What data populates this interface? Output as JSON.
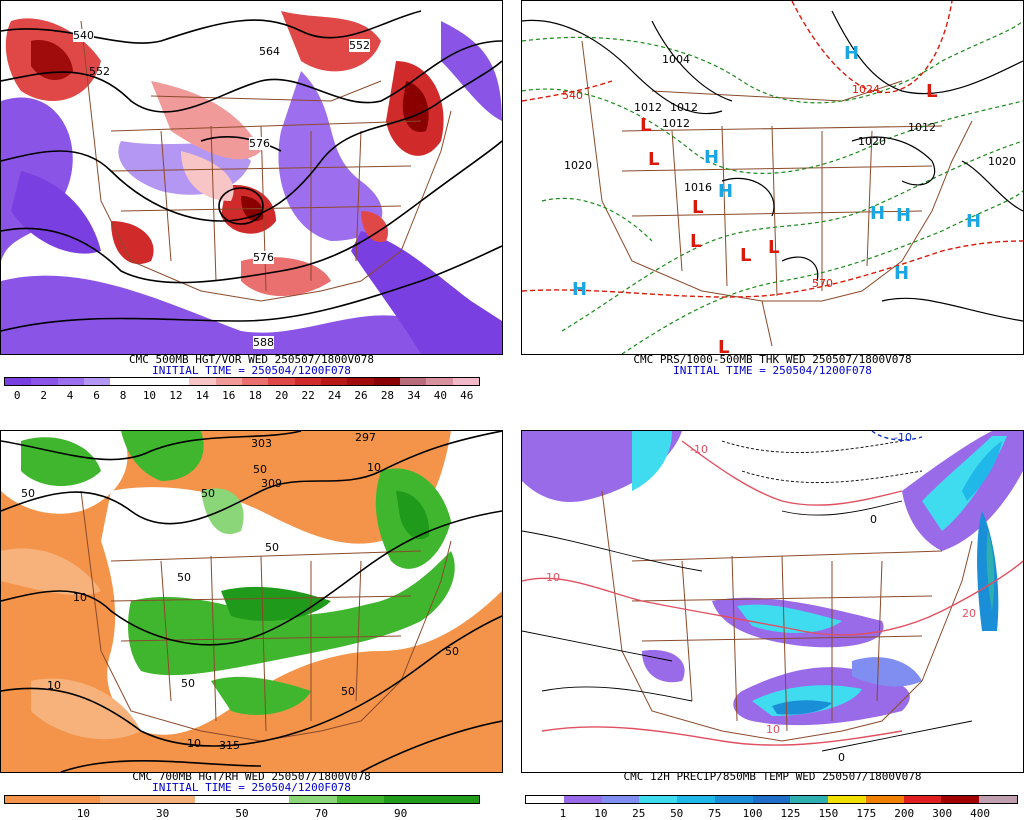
{
  "panels": [
    {
      "id": "vort",
      "caption_line1": "CMC 500MB HGT/VOR WED 250507/1800V078",
      "caption_line2": "INITIAL TIME = 250504/1200F078",
      "contour_labels": [
        "540",
        "552",
        "564",
        "552",
        "576",
        "576",
        "588"
      ],
      "scale_labels": [
        "0",
        "2",
        "4",
        "6",
        "8",
        "10",
        "12",
        "14",
        "16",
        "18",
        "20",
        "22",
        "24",
        "26",
        "28",
        "34",
        "40",
        "46"
      ],
      "scale_colors": [
        "#7a3fe0",
        "#8a55e6",
        "#9d6fee",
        "#b497f2",
        "#ffffff",
        "#ffffff",
        "#ffffff",
        "#f7c5c5",
        "#f19a9a",
        "#ea6f6f",
        "#e04848",
        "#d02a2a",
        "#b81818",
        "#a00c0c",
        "#8a0000",
        "#b86b7a",
        "#d690a0",
        "#f0b8c8"
      ]
    },
    {
      "id": "pres",
      "caption_line1": "CMC PRS/1000-500MB THK WED 250507/1800V078",
      "caption_line2": "INITIAL TIME = 250504/1200F078",
      "isobar_labels": [
        "1020",
        "1012",
        "1012",
        "1012",
        "1004",
        "1020",
        "1016",
        "1020",
        "1012",
        "1020",
        "1016",
        "1016",
        "1024"
      ],
      "thickness_labels": [
        "540",
        "570",
        "546",
        "540"
      ],
      "highs": [
        "H",
        "H",
        "H",
        "H",
        "H",
        "H",
        "H"
      ],
      "lows": [
        "L",
        "L",
        "L",
        "L",
        "L",
        "L",
        "L",
        "L",
        "L"
      ]
    },
    {
      "id": "rh",
      "caption_line1": "CMC 700MB HGT/RH WED 250507/1800V078",
      "caption_line2": "INITIAL TIME = 250504/1200F078",
      "contour_labels": [
        "297",
        "303",
        "309",
        "50",
        "50",
        "10",
        "10",
        "50",
        "10",
        "50",
        "315",
        "50",
        "50",
        "10",
        "50",
        "50"
      ],
      "scale_labels": [
        "10",
        "30",
        "50",
        "70",
        "90"
      ],
      "scale_colors": [
        "#f3944a",
        "#f3944a",
        "#f6b27a",
        "#f6b27a",
        "#ffffff",
        "#ffffff",
        "#8cd67a",
        "#3fb62e",
        "#1f9a1a",
        "#1f9a1a"
      ]
    },
    {
      "id": "precip",
      "caption_line1": "CMC 12H PRECIP/850MB TEMP WED 250507/1800V078",
      "caption_line2": "",
      "contour_labels": [
        "-10",
        "-10",
        "0",
        "0",
        "0",
        "-10",
        "0",
        "20",
        "10",
        "10",
        "10"
      ],
      "scale_labels": [
        "1",
        "10",
        "25",
        "50",
        "75",
        "100",
        "125",
        "150",
        "175",
        "200",
        "300",
        "400"
      ],
      "scale_colors": [
        "#ffffff",
        "#9a6be8",
        "#7f8ef0",
        "#3fdcf0",
        "#1fb8e8",
        "#1a8fd8",
        "#1f6fc8",
        "#2fb0b0",
        "#f0e000",
        "#f08000",
        "#e02020",
        "#a00000",
        "#c0a0b0"
      ]
    }
  ],
  "colors": {
    "state_lines": "#8b4a2b",
    "contour": "#000000",
    "high": "#1aa6e0",
    "low": "#d91a0a",
    "thickness": "#1a8a1a",
    "thickness_warm": "#d91a0a",
    "caption_time": "#0000cc",
    "temp_warm": "#e05060",
    "temp_cold": "#1030c0"
  }
}
